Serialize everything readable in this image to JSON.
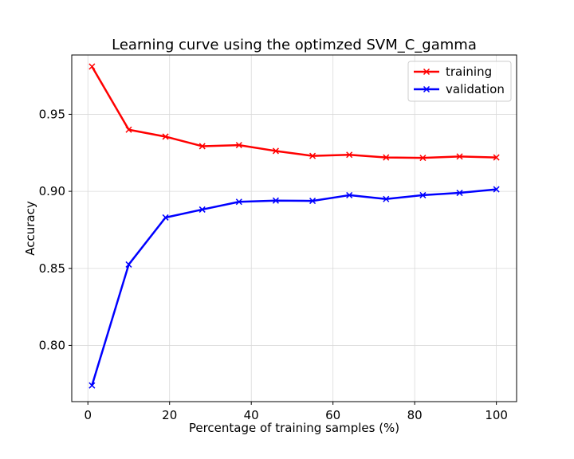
{
  "chart_data": {
    "type": "line",
    "title": "Learning curve using the optimzed SVM_C_gamma",
    "xlabel": "Percentage of training samples (%)",
    "ylabel": "Accuracy",
    "xlim": [
      -3.95,
      104.95
    ],
    "ylim": [
      0.7635,
      0.9885
    ],
    "x_ticks": [
      0,
      20,
      40,
      60,
      80,
      100
    ],
    "y_ticks": [
      0.8,
      0.85,
      0.9,
      0.95
    ],
    "x_tick_labels": [
      "0",
      "20",
      "40",
      "60",
      "80",
      "100"
    ],
    "y_tick_labels": [
      "0.80",
      "0.85",
      "0.90",
      "0.95"
    ],
    "grid": true,
    "legend_position": "top-right",
    "marker": "x",
    "x": [
      1,
      10,
      19,
      28,
      37,
      46,
      55,
      64,
      73,
      82,
      91,
      100
    ],
    "series": [
      {
        "name": "training",
        "color": "#ff0000",
        "values": [
          0.981,
          0.94,
          0.9355,
          0.9293,
          0.93,
          0.9262,
          0.923,
          0.9237,
          0.922,
          0.9217,
          0.9226,
          0.922
        ]
      },
      {
        "name": "validation",
        "color": "#0000ff",
        "values": [
          0.774,
          0.8525,
          0.883,
          0.8882,
          0.8932,
          0.894,
          0.8938,
          0.8975,
          0.895,
          0.8975,
          0.899,
          0.9013
        ]
      }
    ]
  }
}
